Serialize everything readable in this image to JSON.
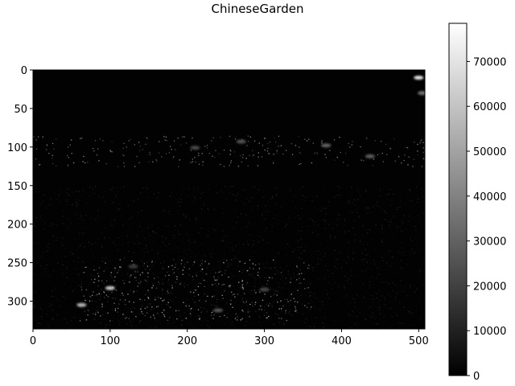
{
  "chart_data": {
    "type": "heatmap",
    "title": "ChineseGarden",
    "xlabel": "",
    "ylabel": "",
    "colormap": "gray",
    "image_width": 508,
    "image_height": 336,
    "xlim": [
      0,
      508
    ],
    "ylim": [
      336,
      0
    ],
    "x_ticks": [
      0,
      100,
      200,
      300,
      400,
      500
    ],
    "y_ticks": [
      0,
      50,
      100,
      150,
      200,
      250,
      300
    ],
    "colorbar": {
      "range": [
        0,
        78500
      ],
      "ticks": [
        0,
        10000,
        20000,
        30000,
        40000,
        50000,
        60000,
        70000
      ]
    },
    "bright_features": [
      {
        "x": 100,
        "y": 283,
        "value": 60000
      },
      {
        "x": 63,
        "y": 305,
        "value": 55000
      },
      {
        "x": 500,
        "y": 10,
        "value": 70000
      },
      {
        "x": 505,
        "y": 30,
        "value": 35000
      },
      {
        "x": 270,
        "y": 93,
        "value": 25000
      },
      {
        "x": 380,
        "y": 98,
        "value": 30000
      },
      {
        "x": 437,
        "y": 112,
        "value": 28000
      },
      {
        "x": 210,
        "y": 101,
        "value": 22000
      },
      {
        "x": 240,
        "y": 312,
        "value": 26000
      },
      {
        "x": 300,
        "y": 285,
        "value": 22000
      },
      {
        "x": 130,
        "y": 255,
        "value": 18000
      }
    ]
  }
}
